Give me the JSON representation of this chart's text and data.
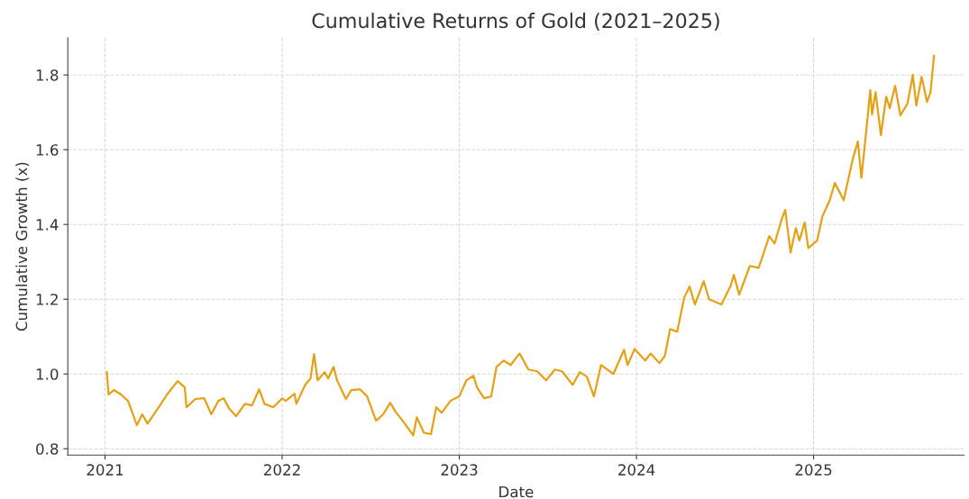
{
  "chart_data": {
    "type": "line",
    "title": "Cumulative Returns of Gold (2021–2025)",
    "xlabel": "Date",
    "ylabel": "Cumulative Growth (x)",
    "xlim": [
      2020.79,
      2025.85
    ],
    "xticks": [
      2021,
      2022,
      2023,
      2024,
      2025
    ],
    "ylim": [
      0.783,
      1.899
    ],
    "yticks": [
      0.8,
      {
        "value": 1.0,
        "label": "1.0"
      },
      1.2,
      1.4,
      1.6,
      1.8
    ],
    "grid": true,
    "line_style": "solid",
    "series": [
      {
        "color": "#e5a116",
        "x": [
          2021.01,
          2021.02,
          2021.05,
          2021.09,
          2021.13,
          2021.18,
          2021.21,
          2021.24,
          2021.31,
          2021.35,
          2021.41,
          2021.45,
          2021.46,
          2021.51,
          2021.56,
          2021.6,
          2021.64,
          2021.67,
          2021.7,
          2021.74,
          2021.79,
          2021.83,
          2021.87,
          2021.9,
          2021.95,
          2022.0,
          2022.02,
          2022.07,
          2022.08,
          2022.13,
          2022.16,
          2022.18,
          2022.2,
          2022.24,
          2022.26,
          2022.29,
          2022.31,
          2022.36,
          2022.39,
          2022.44,
          2022.48,
          2022.53,
          2022.57,
          2022.61,
          2022.64,
          2022.68,
          2022.74,
          2022.76,
          2022.8,
          2022.84,
          2022.87,
          2022.9,
          2022.95,
          2023.0,
          2023.04,
          2023.08,
          2023.1,
          2023.14,
          2023.18,
          2023.21,
          2023.25,
          2023.29,
          2023.34,
          2023.39,
          2023.44,
          2023.49,
          2023.54,
          2023.58,
          2023.64,
          2023.68,
          2023.72,
          2023.76,
          2023.8,
          2023.87,
          2023.93,
          2023.95,
          2023.99,
          2024.05,
          2024.08,
          2024.13,
          2024.16,
          2024.19,
          2024.23,
          2024.27,
          2024.3,
          2024.33,
          2024.38,
          2024.41,
          2024.48,
          2024.53,
          2024.55,
          2024.58,
          2024.64,
          2024.69,
          2024.75,
          2024.78,
          2024.82,
          2024.84,
          2024.87,
          2024.9,
          2024.92,
          2024.95,
          2024.97,
          2025.02,
          2025.05,
          2025.09,
          2025.12,
          2025.17,
          2025.22,
          2025.25,
          2025.27,
          2025.3,
          2025.32,
          2025.33,
          2025.35,
          2025.38,
          2025.41,
          2025.43,
          2025.46,
          2025.49,
          2025.53,
          2025.56,
          2025.58,
          2025.61,
          2025.64,
          2025.66,
          2025.68
        ],
        "values": [
          1.005,
          0.945,
          0.957,
          0.945,
          0.928,
          0.863,
          0.892,
          0.867,
          0.916,
          0.945,
          0.981,
          0.964,
          0.911,
          0.933,
          0.935,
          0.892,
          0.928,
          0.935,
          0.908,
          0.887,
          0.92,
          0.916,
          0.959,
          0.92,
          0.911,
          0.935,
          0.928,
          0.947,
          0.92,
          0.971,
          0.988,
          1.053,
          0.983,
          1.005,
          0.988,
          1.019,
          0.983,
          0.933,
          0.957,
          0.959,
          0.94,
          0.875,
          0.892,
          0.923,
          0.899,
          0.875,
          0.836,
          0.884,
          0.843,
          0.839,
          0.911,
          0.896,
          0.928,
          0.94,
          0.983,
          0.995,
          0.964,
          0.935,
          0.94,
          1.019,
          1.036,
          1.024,
          1.055,
          1.012,
          1.007,
          0.983,
          1.012,
          1.007,
          0.971,
          1.005,
          0.993,
          0.94,
          1.024,
          1.0,
          1.065,
          1.024,
          1.067,
          1.036,
          1.055,
          1.029,
          1.048,
          1.12,
          1.113,
          1.205,
          1.234,
          1.186,
          1.248,
          1.2,
          1.186,
          1.234,
          1.265,
          1.212,
          1.289,
          1.284,
          1.369,
          1.349,
          1.414,
          1.439,
          1.325,
          1.39,
          1.357,
          1.405,
          1.337,
          1.357,
          1.422,
          1.463,
          1.511,
          1.465,
          1.573,
          1.622,
          1.525,
          1.663,
          1.759,
          1.694,
          1.754,
          1.639,
          1.742,
          1.711,
          1.771,
          1.692,
          1.723,
          1.8,
          1.718,
          1.795,
          1.728,
          1.754,
          1.851
        ]
      }
    ]
  }
}
